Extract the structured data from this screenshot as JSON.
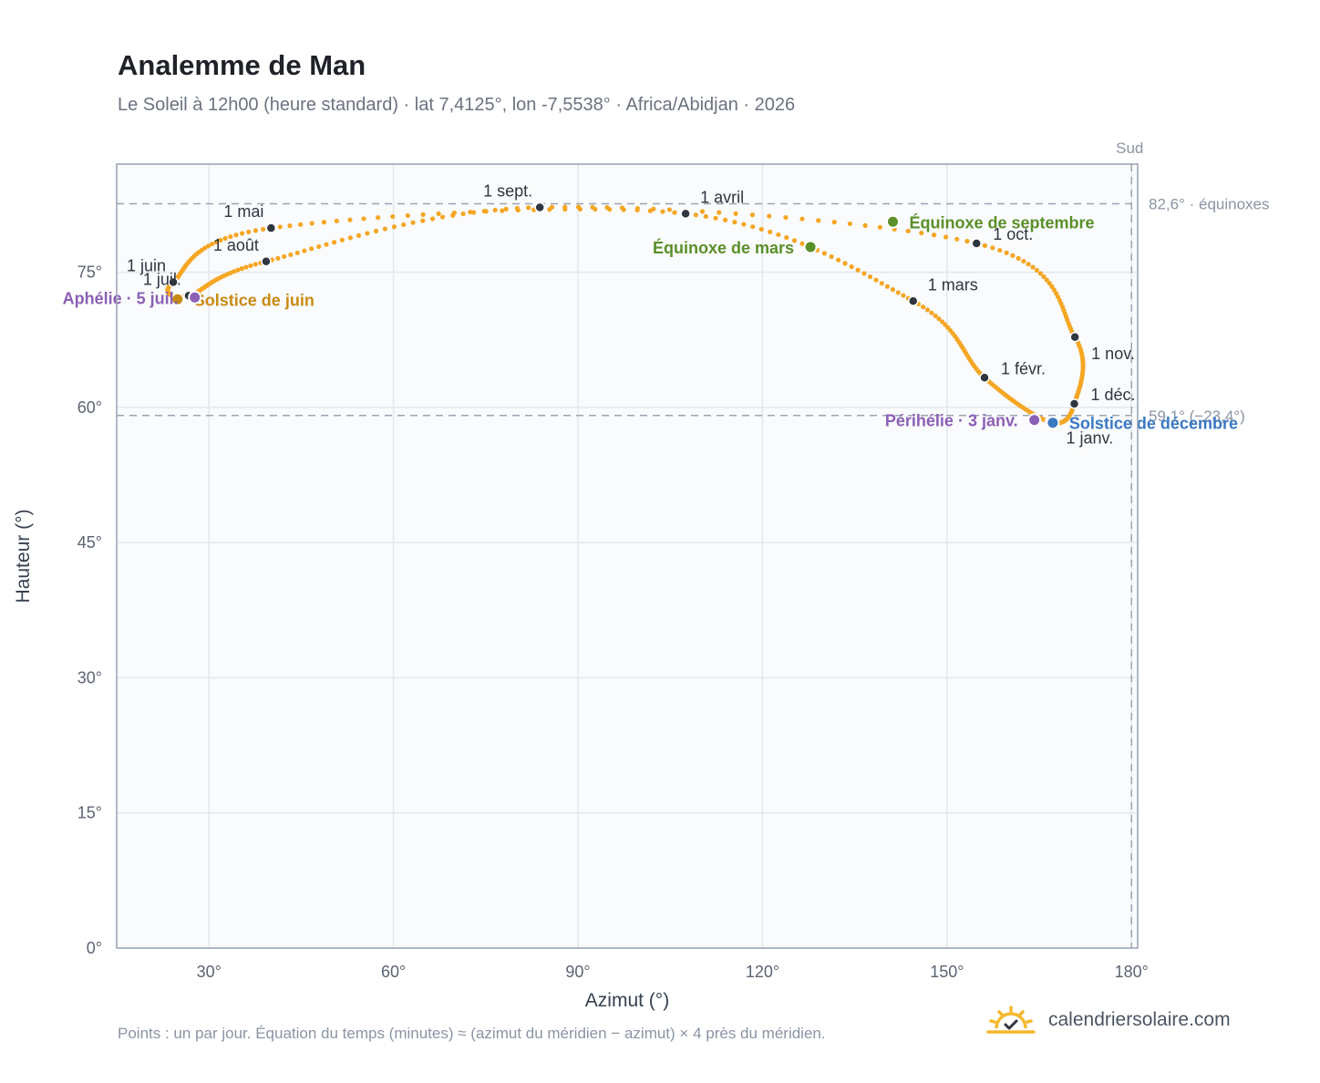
{
  "header": {
    "title": "Analemme de Man",
    "subtitle": "Le Soleil à 12h00 (heure standard) · lat 7,4125°, lon -7,5538° · Africa/Abidjan · 2026"
  },
  "footer": {
    "note": "Points : un par jour. Équation du temps (minutes) ≈ (azimut du méridien − azimut) × 4 près du méridien.",
    "brand": "calendriersolaire.com",
    "brand_icon": "sun-calendar-icon"
  },
  "chart_data": {
    "type": "scatter",
    "xlabel": "Azimut (°)",
    "ylabel": "Hauteur (°)",
    "xlim": [
      15,
      181
    ],
    "ylim": [
      0,
      87
    ],
    "x_ticks": [
      {
        "v": 30,
        "t": "30°"
      },
      {
        "v": 60,
        "t": "60°"
      },
      {
        "v": 90,
        "t": "90°"
      },
      {
        "v": 120,
        "t": "120°"
      },
      {
        "v": 150,
        "t": "150°"
      },
      {
        "v": 180,
        "t": "180°"
      }
    ],
    "y_ticks": [
      {
        "v": 0,
        "t": "0°"
      },
      {
        "v": 15,
        "t": "15°"
      },
      {
        "v": 30,
        "t": "30°"
      },
      {
        "v": 45,
        "t": "45°"
      },
      {
        "v": 60,
        "t": "60°"
      },
      {
        "v": 75,
        "t": "75°"
      }
    ],
    "grid": true,
    "colors": {
      "curve": "#f5a623",
      "month_marker": "#2f3640",
      "equinox": "#5a8f29",
      "june_solstice": "#c98a12",
      "december_solstice": "#3a78c2",
      "apsis": "#8b5fb5",
      "reference": "#9aa5b1"
    },
    "reference_lines": [
      {
        "axis": "y",
        "value": 82.6,
        "label": "82,6° · équinoxes"
      },
      {
        "axis": "y",
        "value": 59.1,
        "label": "59,1° (−23,4°)"
      },
      {
        "axis": "x",
        "value": 180,
        "label": "Sud"
      }
    ],
    "curve_anchors": [
      {
        "date": "1 janv.",
        "az": 166.7,
        "alt": 58.4
      },
      {
        "date": "1 févr.",
        "az": 156.1,
        "alt": 63.3
      },
      {
        "date": "1 mars",
        "az": 144.5,
        "alt": 71.8
      },
      {
        "date": "1 avril",
        "az": 107.5,
        "alt": 81.5
      },
      {
        "date": "1 mai",
        "az": 40.1,
        "alt": 79.9
      },
      {
        "date": "1 juin",
        "az": 24.2,
        "alt": 73.9
      },
      {
        "date": "1 juil.",
        "az": 26.7,
        "alt": 72.4
      },
      {
        "date": "1 août",
        "az": 39.3,
        "alt": 76.2
      },
      {
        "date": "1 sept.",
        "az": 83.8,
        "alt": 82.2
      },
      {
        "date": "1 oct.",
        "az": 154.8,
        "alt": 78.2
      },
      {
        "date": "1 nov.",
        "az": 170.8,
        "alt": 67.8
      },
      {
        "date": "1 déc.",
        "az": 170.7,
        "alt": 60.4
      }
    ],
    "month_markers": [
      {
        "label": "1 janv.",
        "az": 166.7,
        "alt": 58.4,
        "pos": "below-right"
      },
      {
        "label": "1 févr.",
        "az": 156.1,
        "alt": 63.3,
        "pos": "right"
      },
      {
        "label": "1 mars",
        "az": 144.5,
        "alt": 71.8,
        "pos": "above-right"
      },
      {
        "label": "1 avril",
        "az": 107.5,
        "alt": 81.5,
        "pos": "above-right"
      },
      {
        "label": "1 mai",
        "az": 40.1,
        "alt": 79.9,
        "pos": "above-left"
      },
      {
        "label": "1 juin",
        "az": 24.2,
        "alt": 73.9,
        "pos": "above-left"
      },
      {
        "label": "1 juil.",
        "az": 26.7,
        "alt": 72.4,
        "pos": "above-left"
      },
      {
        "label": "1 août",
        "az": 39.3,
        "alt": 76.2,
        "pos": "above-left"
      },
      {
        "label": "1 sept.",
        "az": 83.8,
        "alt": 82.2,
        "pos": "above-left"
      },
      {
        "label": "1 oct.",
        "az": 154.8,
        "alt": 78.2,
        "pos": "right"
      },
      {
        "label": "1 nov.",
        "az": 170.8,
        "alt": 67.8,
        "pos": "below-right"
      },
      {
        "label": "1 déc.",
        "az": 170.7,
        "alt": 60.4,
        "pos": "right"
      }
    ],
    "events": [
      {
        "label": "Équinoxe de mars",
        "az": 127.8,
        "alt": 77.8,
        "kind": "equinox",
        "pos": "left"
      },
      {
        "label": "Équinoxe de septembre",
        "az": 141.2,
        "alt": 80.6,
        "kind": "equinox",
        "pos": "right"
      },
      {
        "label": "Solstice de juin",
        "az": 24.9,
        "alt": 72.0,
        "kind": "june_solstice",
        "pos": "right"
      },
      {
        "label": "Solstice de décembre",
        "az": 167.2,
        "alt": 58.3,
        "kind": "december_solstice",
        "pos": "right"
      },
      {
        "label": "Aphélie · 5 juil.",
        "az": 27.7,
        "alt": 72.2,
        "kind": "apsis",
        "pos": "left"
      },
      {
        "label": "Périhélie · 3 janv.",
        "az": 164.2,
        "alt": 58.6,
        "kind": "apsis",
        "pos": "left"
      }
    ]
  }
}
